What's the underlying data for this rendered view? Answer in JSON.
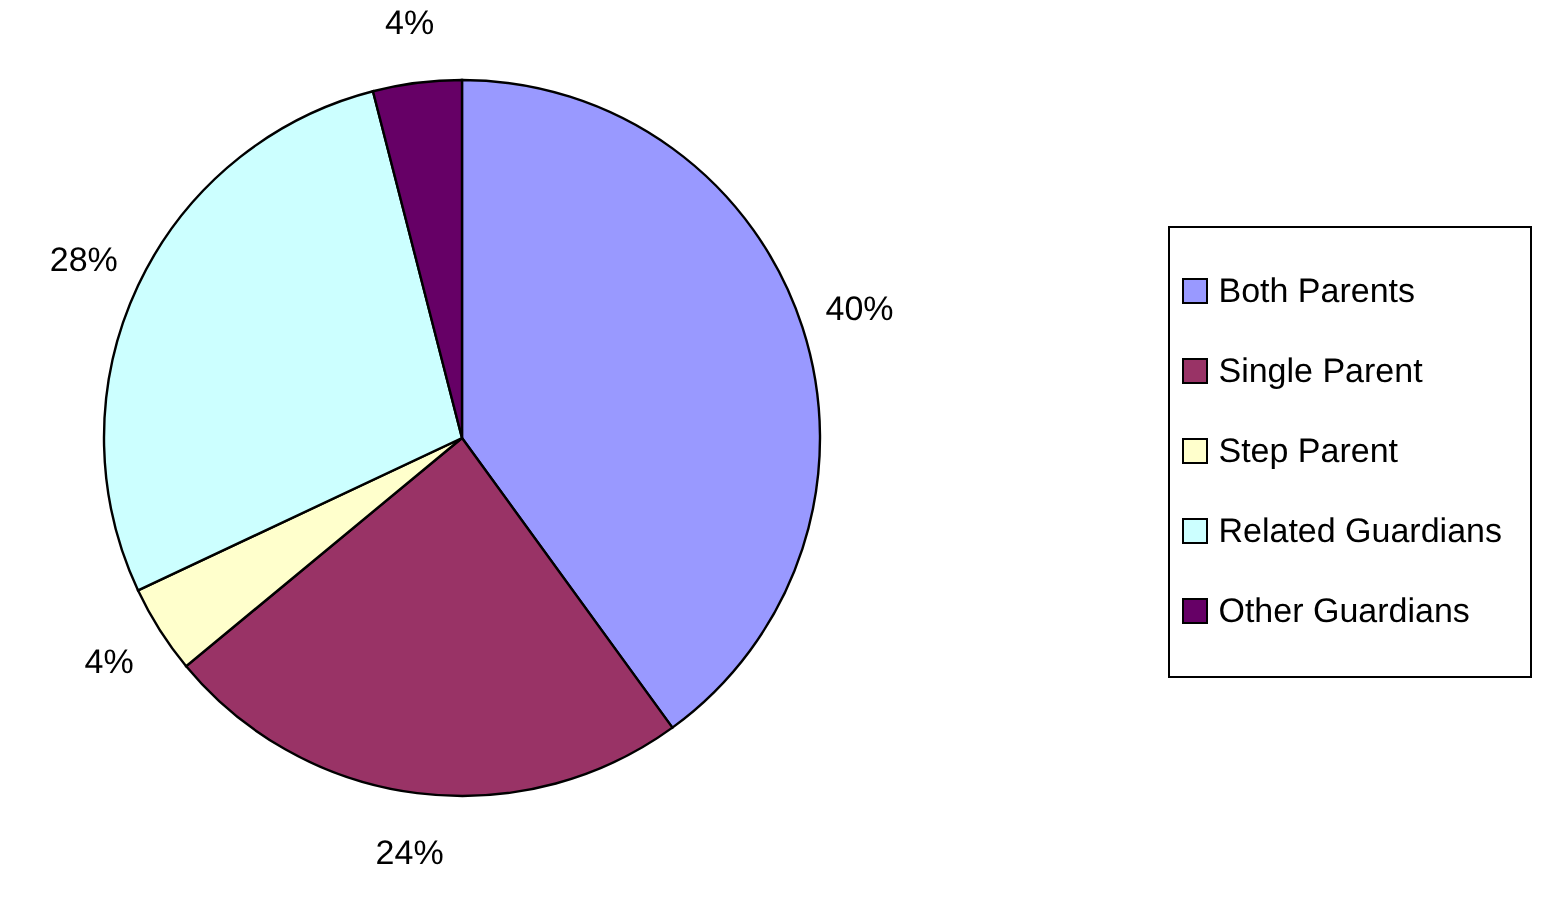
{
  "chart_data": {
    "type": "pie",
    "categories": [
      "Both Parents",
      "Single Parent",
      "Step Parent",
      "Related Guardians",
      "Other Guardians"
    ],
    "values": [
      40,
      24,
      4,
      28,
      4
    ],
    "colors": [
      "#9999ff",
      "#993366",
      "#ffffcc",
      "#ccffff",
      "#660066"
    ],
    "value_labels": [
      "40%",
      "24%",
      "4%",
      "28%",
      "4%"
    ],
    "legend": "right"
  }
}
